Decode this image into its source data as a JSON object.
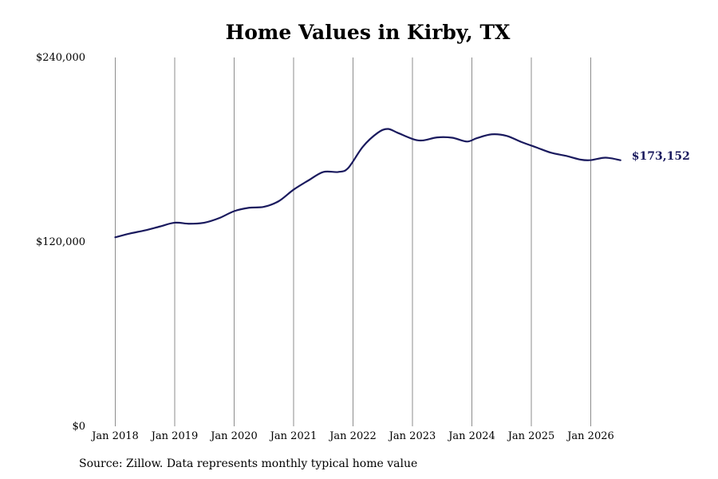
{
  "chart_data": {
    "type": "line",
    "title": "Home Values in Kirby, TX",
    "xlabel": "",
    "ylabel": "",
    "ylim": [
      0,
      240000
    ],
    "xlim": [
      "2018-01",
      "2026-07"
    ],
    "y_ticks": [
      0,
      120000,
      240000
    ],
    "y_tick_labels": [
      "$0",
      "$120,000",
      "$240,000"
    ],
    "x_ticks": [
      "2018-01",
      "2019-01",
      "2020-01",
      "2021-01",
      "2022-01",
      "2023-01",
      "2024-01",
      "2025-01",
      "2026-01"
    ],
    "x_tick_labels": [
      "Jan 2018",
      "Jan 2019",
      "Jan 2020",
      "Jan 2021",
      "Jan 2022",
      "Jan 2023",
      "Jan 2024",
      "Jan 2025",
      "Jan 2026"
    ],
    "grid": "vertical",
    "line_color": "#1a1a5e",
    "series": [
      {
        "x": [
          "2018-01",
          "2018-04",
          "2018-07",
          "2018-10",
          "2019-01",
          "2019-04",
          "2019-07",
          "2019-10",
          "2020-01",
          "2020-04",
          "2020-07",
          "2020-10",
          "2021-01",
          "2021-04",
          "2021-07",
          "2021-10",
          "2021-12",
          "2022-03",
          "2022-06",
          "2022-08",
          "2022-10",
          "2023-01",
          "2023-03",
          "2023-06",
          "2023-09",
          "2023-12",
          "2024-02",
          "2024-05",
          "2024-08",
          "2024-11",
          "2025-02",
          "2025-05",
          "2025-08",
          "2025-11",
          "2026-01",
          "2026-04",
          "2026-07"
        ],
        "values": [
          123000,
          125500,
          127500,
          130000,
          132500,
          131800,
          132500,
          135500,
          140000,
          142200,
          142800,
          146500,
          154000,
          160000,
          165500,
          165500,
          168000,
          182000,
          191000,
          193500,
          191000,
          187000,
          186000,
          188000,
          187800,
          185300,
          187500,
          190000,
          189000,
          185000,
          181500,
          178000,
          176000,
          173500,
          173200,
          174800,
          173152
        ]
      }
    ],
    "end_label": "$173,152"
  },
  "source_note": "Source: Zillow. Data represents monthly typical home value"
}
